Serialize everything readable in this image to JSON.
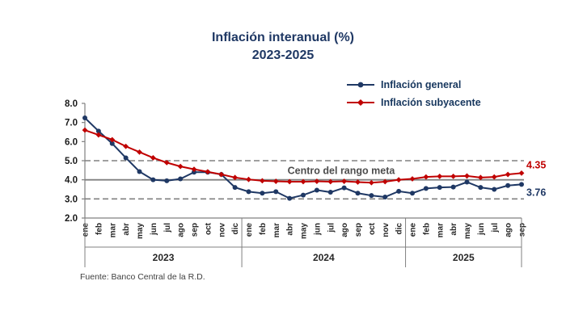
{
  "title": {
    "line1": "Inflación interanual (%)",
    "line2": "2023-2025"
  },
  "legend": {
    "items": [
      {
        "label": "Inflación general",
        "color": "#1f3864",
        "marker": "circle"
      },
      {
        "label": "Inflación subyacente",
        "color": "#c00000",
        "marker": "diamond"
      }
    ]
  },
  "source": "Fuente: Banco Central de la R.D.",
  "colors": {
    "general": "#1f3864",
    "subyacente": "#c00000",
    "reference": "#808080",
    "axis": "#808080",
    "axis_text": "#262626",
    "center_label": "#4d4d4d"
  },
  "chart_data": {
    "type": "line",
    "title": "Inflación interanual (%) 2023-2025",
    "x": [
      "ene",
      "feb",
      "mar",
      "abr",
      "may",
      "jun",
      "jul",
      "ago",
      "sep",
      "oct",
      "nov",
      "dic",
      "ene",
      "feb",
      "mar",
      "abr",
      "may",
      "jun",
      "jul",
      "ago",
      "sep",
      "oct",
      "nov",
      "dic",
      "ene",
      "feb",
      "mar",
      "abr",
      "may",
      "jun",
      "jul",
      "ago",
      "sep"
    ],
    "year_groups": [
      {
        "label": "2023",
        "months": 12
      },
      {
        "label": "2024",
        "months": 12
      },
      {
        "label": "2025",
        "months": 9
      }
    ],
    "ylim": [
      2.0,
      8.0
    ],
    "yticks": [
      8.0,
      7.0,
      6.0,
      5.0,
      4.0,
      3.0,
      2.0
    ],
    "grid": false,
    "legend_position": "top-right",
    "reference_lines": {
      "center": {
        "value": 4.0,
        "label": "Centro del rango meta",
        "style": "solid"
      },
      "upper": {
        "value": 5.0,
        "style": "dashed"
      },
      "lower": {
        "value": 3.0,
        "style": "dashed"
      }
    },
    "series": [
      {
        "name": "Inflación general",
        "color": "#1f3864",
        "marker": "circle",
        "end_label": "3.76",
        "values": [
          7.24,
          6.55,
          5.9,
          5.15,
          4.43,
          4.0,
          3.95,
          4.05,
          4.4,
          4.4,
          4.28,
          3.6,
          3.38,
          3.3,
          3.38,
          3.03,
          3.2,
          3.46,
          3.35,
          3.58,
          3.3,
          3.18,
          3.1,
          3.4,
          3.3,
          3.55,
          3.6,
          3.62,
          3.88,
          3.6,
          3.5,
          3.7,
          3.76
        ]
      },
      {
        "name": "Inflación subyacente",
        "color": "#c00000",
        "marker": "diamond",
        "end_label": "4.35",
        "values": [
          6.6,
          6.35,
          6.1,
          5.75,
          5.45,
          5.15,
          4.9,
          4.7,
          4.55,
          4.42,
          4.28,
          4.12,
          4.02,
          3.95,
          3.92,
          3.9,
          3.9,
          3.92,
          3.9,
          3.92,
          3.88,
          3.85,
          3.9,
          4.0,
          4.05,
          4.15,
          4.18,
          4.18,
          4.2,
          4.12,
          4.15,
          4.28,
          4.35
        ]
      }
    ]
  }
}
